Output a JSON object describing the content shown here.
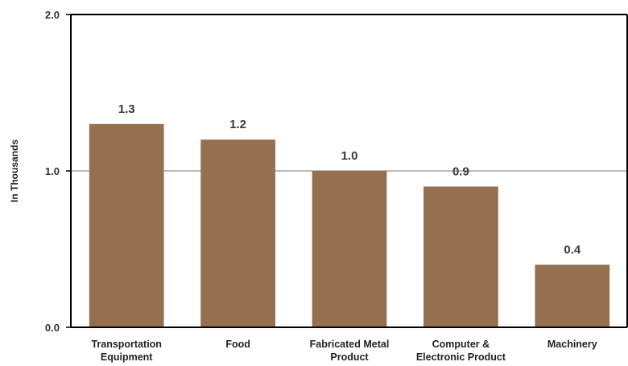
{
  "chart_data": {
    "type": "bar",
    "categories": [
      [
        "Transportation",
        "Equipment"
      ],
      [
        "Food"
      ],
      [
        "Fabricated Metal",
        "Product"
      ],
      [
        "Computer &",
        "Electronic Product"
      ],
      [
        "Machinery"
      ]
    ],
    "values": [
      1.3,
      1.2,
      1.0,
      0.9,
      0.4
    ],
    "data_labels": [
      "1.3",
      "1.2",
      "1.0",
      "0.9",
      "0.4"
    ],
    "title": "",
    "xlabel": "",
    "ylabel": "In Thousands",
    "ylim": [
      0,
      2.0
    ],
    "yticks": [
      0,
      1.0,
      2.0
    ],
    "ytick_labels": [
      "0.0",
      "1.0",
      "2.0"
    ],
    "grid": true,
    "legend": "none",
    "colors": {
      "bar": "#947050",
      "gridline": "#a6a6a6",
      "axis": "#000000"
    }
  }
}
